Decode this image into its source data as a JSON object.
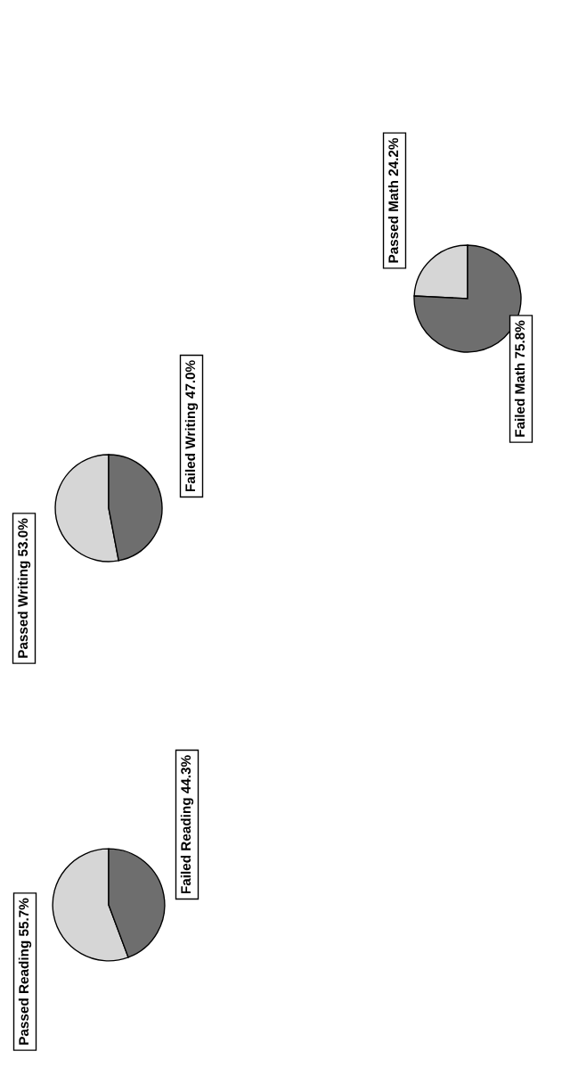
{
  "chart_data": [
    {
      "type": "pie",
      "categories": [
        "Passed Writing",
        "Failed Writing"
      ],
      "values": [
        53.0,
        47.0
      ],
      "value_labels": [
        "53.0%",
        "47.0%"
      ],
      "colors": [
        "#d6d6d6",
        "#6e6e6e"
      ]
    },
    {
      "type": "pie",
      "categories": [
        "Passed Reading",
        "Failed Reading"
      ],
      "values": [
        55.7,
        44.3
      ],
      "value_labels": [
        "55.7%",
        "44.3%"
      ],
      "colors": [
        "#d6d6d6",
        "#6e6e6e"
      ]
    },
    {
      "type": "pie",
      "categories": [
        "Passed Math",
        "Failed Math"
      ],
      "values": [
        24.2,
        75.8
      ],
      "value_labels": [
        "24.2%",
        "75.8%"
      ],
      "colors": [
        "#d6d6d6",
        "#6e6e6e"
      ]
    }
  ]
}
